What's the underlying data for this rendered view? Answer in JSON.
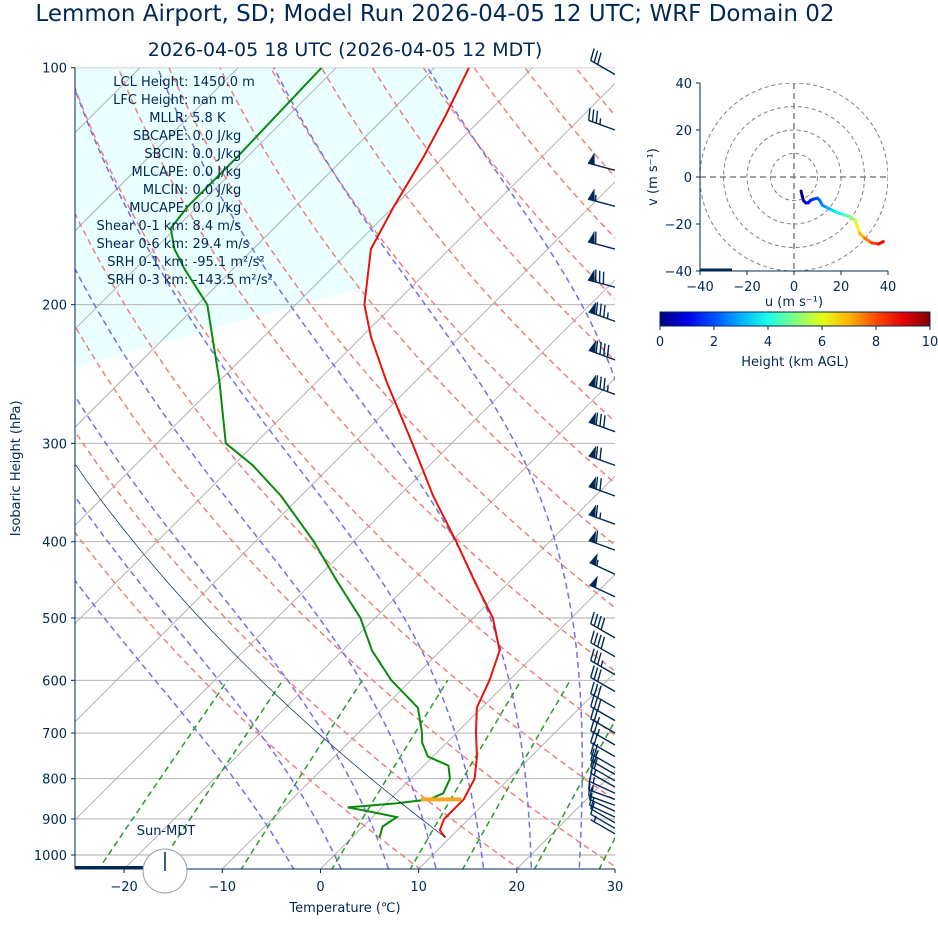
{
  "title": "Lemmon Airport, SD; Model Run 2026-04-05 12 UTC; WRF Domain 02",
  "subtitle": "2026-04-05 18 UTC  (2026-04-05 12 MDT)",
  "colors": {
    "text": "#002855",
    "temperature": "#e8140c",
    "dewpoint": "#0a8a0a",
    "cape_fill": "#eaffff",
    "dry_adiabat": "#f08080",
    "moist_adiabat": "#7070ee",
    "mixing_ratio": "#2a9a2a",
    "grid": "#aaaaaa",
    "lcl_marker": "#f5a623"
  },
  "stats": [
    "LCL Height: 1450.0 m",
    "LFC Height: nan m",
    "MLLR: 5.8 K",
    "SBCAPE: 0.0 J/kg",
    "SBCIN: 0.0 J/kg",
    "MLCAPE: 0.0 J/kg",
    "MLCIN: 0.0 J/kg",
    "MUCAPE: 0.0 J/kg",
    "Shear 0-1 km: 8.4 m/s",
    "Shear 0-6 km: 29.4 m/s",
    "SRH 0-1 km: -95.1 m²/s²",
    "SRH 0-3 km: -143.5 m²/s²"
  ],
  "sun_label": "Sun-MDT",
  "chart_data": [
    {
      "type": "line",
      "name": "skew-t",
      "xlabel": "Temperature (℃)",
      "ylabel": "Isobaric Height (hPa)",
      "xlim": [
        -25,
        30
      ],
      "ylim": [
        1050,
        100
      ],
      "y_scale": "log",
      "x_ticks": [
        -20,
        -10,
        0,
        10,
        20,
        30
      ],
      "x_tick_labels": [
        "−20",
        "−10",
        "0",
        "10",
        "20",
        "30"
      ],
      "y_ticks": [
        1000,
        900,
        800,
        700,
        600,
        500,
        400,
        300,
        200,
        100
      ],
      "y_tick_labels": [
        "1000",
        "900",
        "800",
        "700",
        "600",
        "500",
        "400",
        "300",
        "200",
        "100"
      ],
      "grid": true,
      "series": [
        {
          "key": "temperature",
          "points": [
            [
              950,
              9.5
            ],
            [
              930,
              8.2
            ],
            [
              900,
              7.5
            ],
            [
              850,
              7.5
            ],
            [
              800,
              6.5
            ],
            [
              750,
              4.5
            ],
            [
              700,
              2.0
            ],
            [
              650,
              -0.5
            ],
            [
              600,
              -2.0
            ],
            [
              550,
              -4.0
            ],
            [
              500,
              -8.0
            ],
            [
              450,
              -13.5
            ],
            [
              400,
              -19.5
            ],
            [
              350,
              -26.5
            ],
            [
              300,
              -34.0
            ],
            [
              250,
              -43.0
            ],
            [
              220,
              -49.0
            ],
            [
              200,
              -53.0
            ],
            [
              170,
              -58.0
            ],
            [
              150,
              -60.0
            ],
            [
              130,
              -62.0
            ],
            [
              115,
              -64.0
            ],
            [
              100,
              -66.5
            ]
          ]
        },
        {
          "key": "dewpoint",
          "points": [
            [
              950,
              2.8
            ],
            [
              920,
              2.0
            ],
            [
              895,
              2.5
            ],
            [
              880,
              -1.0
            ],
            [
              870,
              -3.5
            ],
            [
              860,
              1.0
            ],
            [
              850,
              4.0
            ],
            [
              835,
              4.8
            ],
            [
              800,
              4.0
            ],
            [
              770,
              2.5
            ],
            [
              750,
              -0.5
            ],
            [
              720,
              -2.5
            ],
            [
              700,
              -3.5
            ],
            [
              650,
              -6.5
            ],
            [
              600,
              -12.0
            ],
            [
              550,
              -17.0
            ],
            [
              500,
              -21.5
            ],
            [
              450,
              -27.5
            ],
            [
              400,
              -34.0
            ],
            [
              350,
              -42.0
            ],
            [
              320,
              -48.0
            ],
            [
              300,
              -53.0
            ],
            [
              250,
              -60.0
            ],
            [
              200,
              -69.0
            ],
            [
              180,
              -75.0
            ],
            [
              170,
              -78.0
            ],
            [
              160,
              -80.5
            ],
            [
              150,
              -81.0
            ],
            [
              130,
              -81.0
            ],
            [
              100,
              -81.5
            ]
          ]
        }
      ],
      "cape_region": true,
      "lcl_marker": {
        "pressure": 850,
        "temperature": 5.2
      },
      "dry_adiabats_theta_K": [
        280,
        290,
        300,
        310,
        320,
        330,
        340,
        350,
        360,
        370,
        380,
        390,
        400,
        410,
        420,
        430,
        440,
        450
      ],
      "moist_adiabats_thetaw_C": [
        -5,
        0,
        5,
        10,
        15,
        20,
        25,
        30,
        35
      ],
      "mixing_ratios_gkg": [
        0.6,
        1,
        2,
        4,
        7,
        10,
        16,
        24,
        32
      ]
    },
    {
      "type": "line",
      "name": "hodograph",
      "xlabel": "u (m s⁻¹)",
      "ylabel": "v (m s⁻¹)",
      "xlim": [
        -40,
        40
      ],
      "ylim": [
        -40,
        40
      ],
      "x_ticks": [
        -40,
        -20,
        0,
        20,
        40
      ],
      "x_tick_labels": [
        "−40",
        "−20",
        "0",
        "20",
        "40"
      ],
      "y_ticks": [
        -40,
        -20,
        0,
        20,
        40
      ],
      "y_tick_labels": [
        "−40",
        "−20",
        "0",
        "20",
        "40"
      ],
      "rings": [
        10,
        20,
        30,
        40
      ],
      "colorbar": {
        "label": "Height (km AGL)",
        "range": [
          0,
          10
        ],
        "ticks": [
          "0",
          "2",
          "4",
          "6",
          "8",
          "10"
        ]
      },
      "points": [
        [
          3,
          -6,
          0
        ],
        [
          3.5,
          -8,
          0.3
        ],
        [
          4,
          -10,
          0.6
        ],
        [
          5,
          -11,
          0.9
        ],
        [
          6,
          -11,
          1.2
        ],
        [
          7,
          -10,
          1.5
        ],
        [
          8,
          -9.5,
          1.8
        ],
        [
          10,
          -9,
          2.1
        ],
        [
          11,
          -10,
          2.4
        ],
        [
          12,
          -12,
          2.7
        ],
        [
          14,
          -13,
          3.0
        ],
        [
          16,
          -14,
          3.5
        ],
        [
          18,
          -15,
          4.0
        ],
        [
          21,
          -16,
          4.6
        ],
        [
          24,
          -17,
          5.2
        ],
        [
          26,
          -18.5,
          5.8
        ],
        [
          27,
          -21,
          6.4
        ],
        [
          28,
          -24,
          7.0
        ],
        [
          30,
          -26,
          7.6
        ],
        [
          33,
          -28,
          8.2
        ],
        [
          36,
          -28.5,
          8.8
        ],
        [
          38,
          -27.5,
          9.4
        ]
      ]
    },
    {
      "type": "scatter",
      "name": "wind-barbs",
      "units": "m/s",
      "barbs": [
        {
          "p": 940,
          "speed": 4,
          "dir": 300
        },
        {
          "p": 925,
          "speed": 5,
          "dir": 300
        },
        {
          "p": 910,
          "speed": 6,
          "dir": 300
        },
        {
          "p": 895,
          "speed": 6,
          "dir": 295
        },
        {
          "p": 880,
          "speed": 7,
          "dir": 295
        },
        {
          "p": 865,
          "speed": 7,
          "dir": 290
        },
        {
          "p": 850,
          "speed": 8,
          "dir": 290
        },
        {
          "p": 835,
          "speed": 8,
          "dir": 295
        },
        {
          "p": 820,
          "speed": 9,
          "dir": 300
        },
        {
          "p": 805,
          "speed": 10,
          "dir": 300
        },
        {
          "p": 790,
          "speed": 10,
          "dir": 300
        },
        {
          "p": 775,
          "speed": 11,
          "dir": 300
        },
        {
          "p": 750,
          "speed": 12,
          "dir": 300
        },
        {
          "p": 725,
          "speed": 13,
          "dir": 300
        },
        {
          "p": 700,
          "speed": 14,
          "dir": 300
        },
        {
          "p": 675,
          "speed": 15,
          "dir": 300
        },
        {
          "p": 650,
          "speed": 16,
          "dir": 300
        },
        {
          "p": 620,
          "speed": 17,
          "dir": 300
        },
        {
          "p": 590,
          "speed": 18,
          "dir": 300
        },
        {
          "p": 560,
          "speed": 20,
          "dir": 300
        },
        {
          "p": 530,
          "speed": 22,
          "dir": 300
        },
        {
          "p": 470,
          "speed": 27,
          "dir": 295
        },
        {
          "p": 440,
          "speed": 28,
          "dir": 295
        },
        {
          "p": 410,
          "speed": 30,
          "dir": 290
        },
        {
          "p": 380,
          "speed": 33,
          "dir": 290
        },
        {
          "p": 350,
          "speed": 36,
          "dir": 290
        },
        {
          "p": 320,
          "speed": 37,
          "dir": 290
        },
        {
          "p": 290,
          "speed": 40,
          "dir": 290
        },
        {
          "p": 260,
          "speed": 43,
          "dir": 290
        },
        {
          "p": 235,
          "speed": 45,
          "dir": 290
        },
        {
          "p": 210,
          "speed": 43,
          "dir": 290
        },
        {
          "p": 190,
          "speed": 40,
          "dir": 285
        },
        {
          "p": 170,
          "speed": 30,
          "dir": 285
        },
        {
          "p": 150,
          "speed": 28,
          "dir": 285
        },
        {
          "p": 135,
          "speed": 25,
          "dir": 285
        },
        {
          "p": 120,
          "speed": 18,
          "dir": 290
        },
        {
          "p": 102,
          "speed": 15,
          "dir": 300
        }
      ]
    }
  ]
}
